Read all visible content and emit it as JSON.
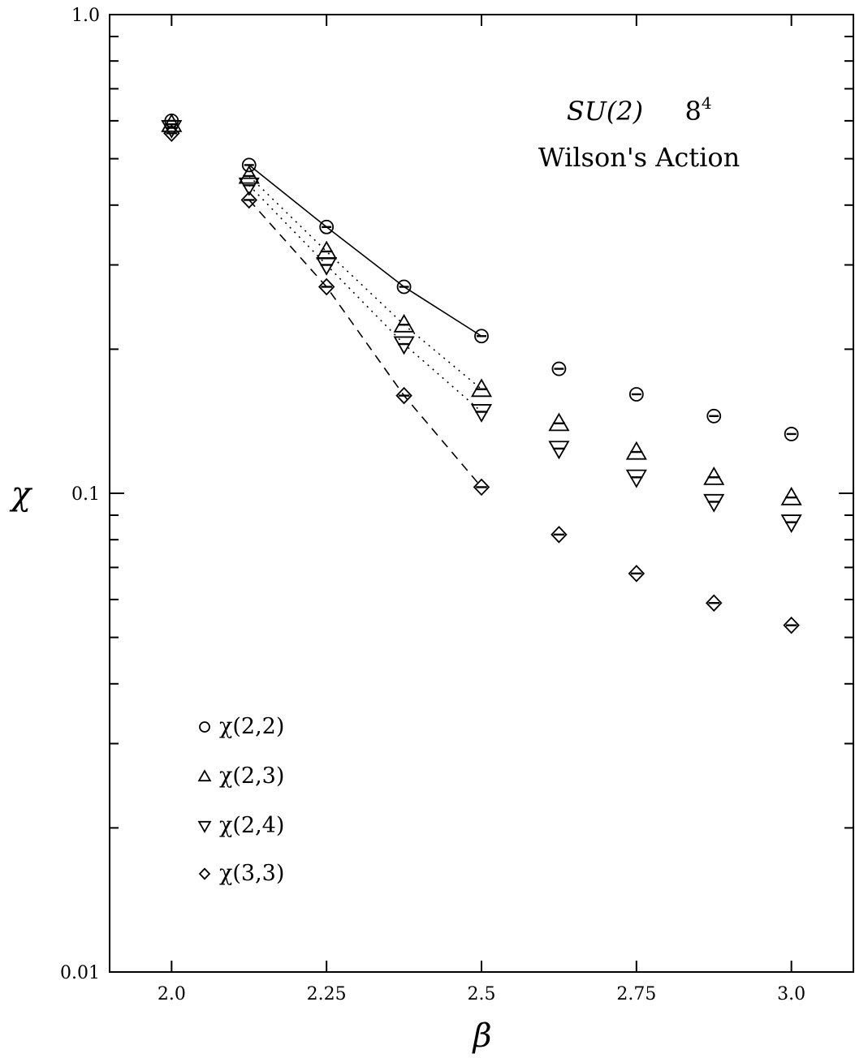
{
  "chart_data": {
    "type": "scatter",
    "title": "",
    "annotations": {
      "group": "SU(2)",
      "lattice_base": "8",
      "lattice_exp": "4",
      "action": "Wilson's Action"
    },
    "xlabel": "β",
    "ylabel": "χ",
    "x_scale": "linear",
    "y_scale": "log",
    "xlim": [
      1.9,
      3.1
    ],
    "ylim": [
      0.01,
      1.0
    ],
    "x_ticks": [
      2.0,
      2.25,
      2.5,
      2.75,
      3.0
    ],
    "x_tick_labels": [
      "2.0",
      "2.25",
      "2.5",
      "2.75",
      "3.0"
    ],
    "y_ticks": [
      0.01,
      0.1,
      1.0
    ],
    "y_tick_labels": [
      "0.01",
      "0.1",
      "1.0"
    ],
    "grid": false,
    "legend_position": "bottom-left",
    "series": [
      {
        "name": "χ(2,2)",
        "marker": "circle",
        "x": [
          2.0,
          2.125,
          2.25,
          2.375,
          2.5,
          2.625,
          2.75,
          2.875,
          3.0
        ],
        "y": [
          0.6,
          0.485,
          0.36,
          0.27,
          0.213,
          0.182,
          0.161,
          0.145,
          0.133
        ],
        "fit_line": "solid",
        "fit_range": [
          2.125,
          2.5
        ]
      },
      {
        "name": "χ(2,3)",
        "marker": "triangle-up",
        "x": [
          2.0,
          2.125,
          2.25,
          2.375,
          2.5,
          2.625,
          2.75,
          2.875,
          3.0
        ],
        "y": [
          0.59,
          0.46,
          0.32,
          0.225,
          0.165,
          0.14,
          0.122,
          0.108,
          0.098
        ],
        "fit_line": "dotted",
        "fit_range": [
          2.125,
          2.5
        ]
      },
      {
        "name": "χ(2,4)",
        "marker": "triangle-down",
        "x": [
          2.0,
          2.125,
          2.25,
          2.375,
          2.5,
          2.625,
          2.75,
          2.875,
          3.0
        ],
        "y": [
          0.58,
          0.44,
          0.3,
          0.205,
          0.148,
          0.124,
          0.108,
          0.096,
          0.087
        ],
        "fit_line": "dotted",
        "fit_range": [
          2.125,
          2.5
        ]
      },
      {
        "name": "χ(3,3)",
        "marker": "diamond",
        "x": [
          2.0,
          2.125,
          2.25,
          2.375,
          2.5,
          2.625,
          2.75,
          2.875,
          3.0
        ],
        "y": [
          0.565,
          0.41,
          0.27,
          0.16,
          0.103,
          0.082,
          0.068,
          0.059,
          0.053
        ],
        "fit_line": "dashed",
        "fit_range": [
          2.125,
          2.5
        ]
      }
    ]
  }
}
